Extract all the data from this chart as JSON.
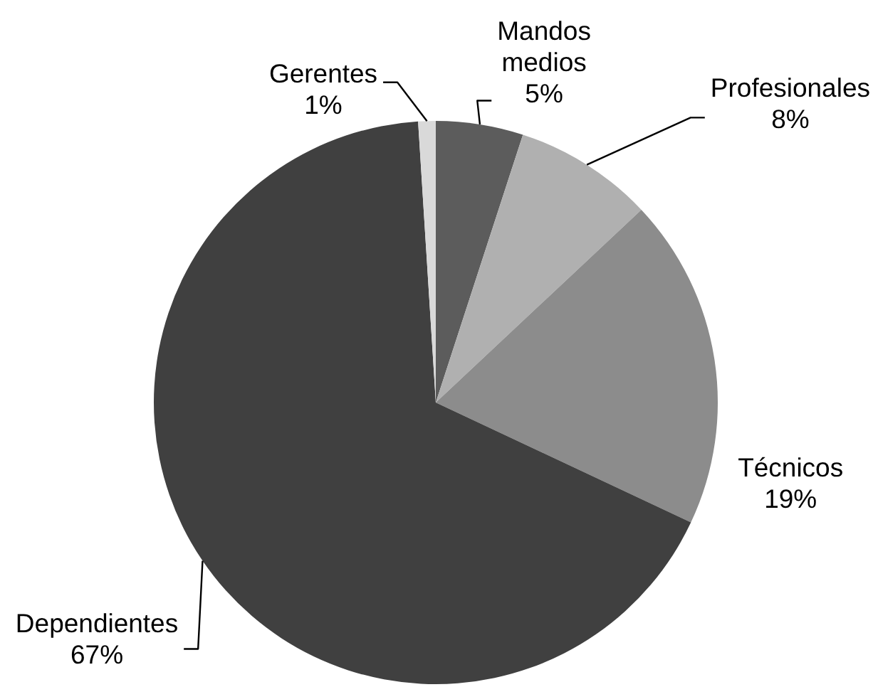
{
  "chart_data": {
    "type": "pie",
    "categories": [
      "Mandos medios",
      "Profesionales",
      "Técnicos",
      "Dependientes",
      "Gerentes"
    ],
    "values": [
      5,
      8,
      19,
      67,
      1
    ],
    "colors": [
      "#5c5c5c",
      "#b0b0b0",
      "#8c8c8c",
      "#404040",
      "#d9d9d9"
    ],
    "value_labels": [
      "5%",
      "8%",
      "19%",
      "67%",
      "1%"
    ]
  }
}
